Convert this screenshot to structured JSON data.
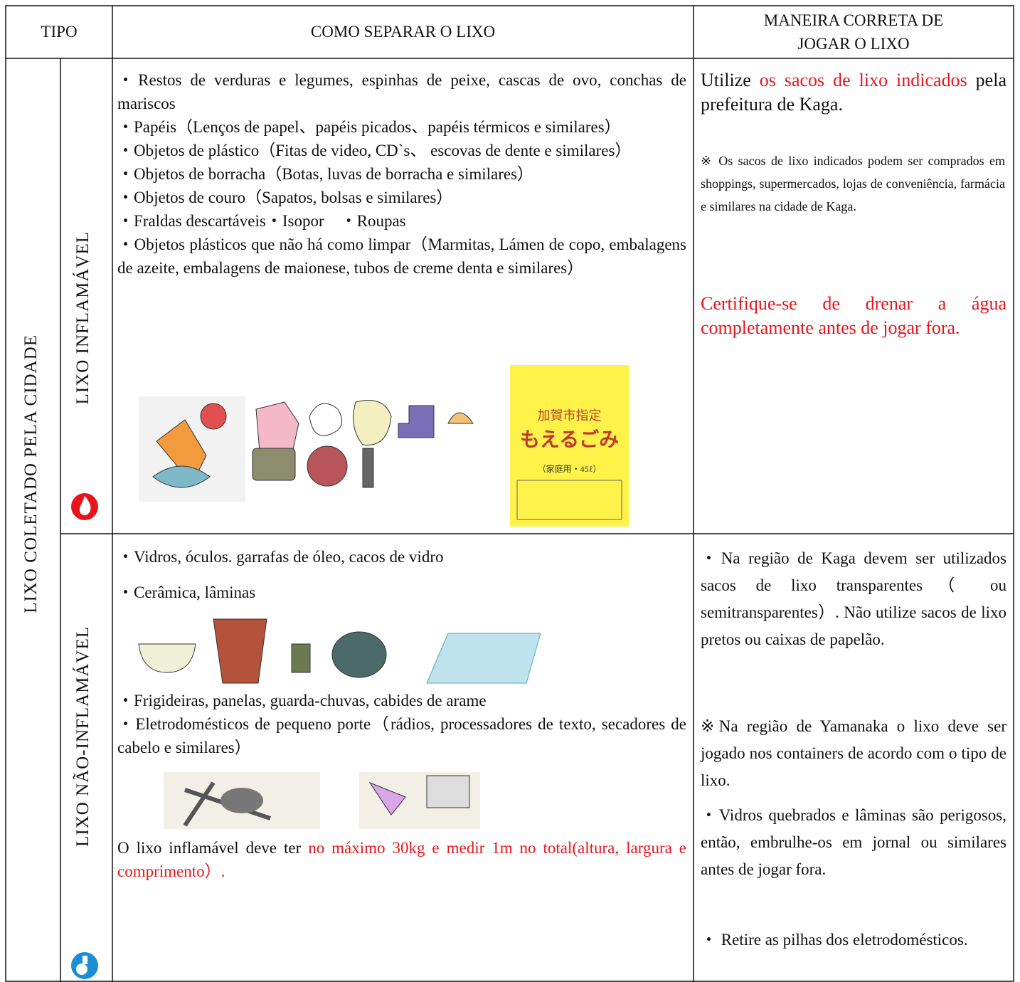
{
  "header": {
    "tipo": "TIPO",
    "como": "COMO SEPARAR O LIXO",
    "maneira": "MANEIRA CORRETA DE JOGAR O LIXO"
  },
  "group_label": "LIXO COLETADO PELA CIDADE",
  "rows": [
    {
      "type": "LIXO INFLAMÁVEL",
      "items": [
        "・Restos de verduras e legumes, espinhas de peixe, cascas de ovo, conchas de mariscos",
        "・Papéis（Lenços de papel、papéis picados、papéis térmicos e similares）",
        "・Objetos de plástico（Fitas de video, CD`s、 escovas de dente e similares）",
        "・Objetos de borracha（Botas, luvas de borracha e similares）",
        "・Objetos de couro（Sapatos, bolsas e similares）",
        "・Fraldas descartáveis・Isopor　・Roupas",
        "・Objetos plásticos que não há como limpar（Marmitas, Lámen de copo, embalagens de azeite, embalagens de maionese, tubos de creme denta e similares）"
      ],
      "bag_label": [
        "加賀市指定",
        "もえるごみ",
        "（家庭用・45ℓ）"
      ],
      "method": {
        "intro": [
          "Utilize ",
          "os sacos de lixo indicados",
          " pela prefeitura de Kaga."
        ],
        "note": "※ Os sacos de lixo indicados podem ser comprados em shoppings, supermercados, lojas de conveniência, farmácia e similares na cidade de Kaga.",
        "warning": "Certifique-se de drenar a água completamente antes de jogar fora."
      }
    },
    {
      "type": "LIXO NÃO-INFLAMÁVEL",
      "items": [
        "・Vidros, óculos. garrafas de óleo, cacos de vidro",
        "・Cerâmica, lâminas",
        "・Frigideiras, panelas, guarda-chuvas, cabides de arame",
        "・Eletrodomésticos de pequeno porte（rádios, processadores de texto, secadores de cabelo e similares）"
      ],
      "limit_note": [
        "O lixo inflamável deve ter ",
        "no máximo 30kg e medir 1m no total(altura, largura e comprimento）."
      ],
      "method": [
        "・Na região de Kaga devem ser utilizados sacos de lixo transparentes（ ou semitransparentes）. Não utilize sacos de lixo pretos ou caixas de papelão.",
        "※Na região de Yamanaka o lixo deve ser jogado nos containers de acordo com o tipo de lixo.",
        "・Vidros quebrados e lâminas são perigosos, então, embrulhe-os em jornal ou similares antes de jogar fora.",
        "・ Retire as pilhas dos eletrodomésticos."
      ]
    }
  ]
}
